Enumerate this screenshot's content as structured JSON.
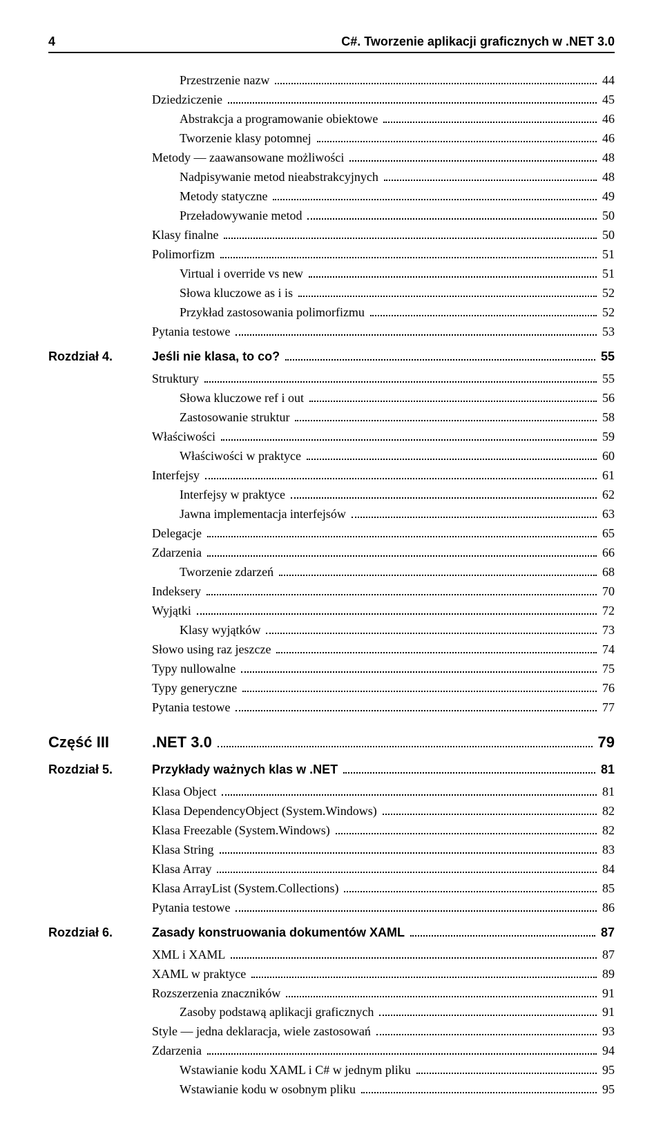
{
  "page_number": "4",
  "running_head": "C#. Tworzenie aplikacji graficznych w .NET 3.0",
  "cont_entries": [
    {
      "label": "Przestrzenie nazw",
      "page": "44",
      "level": 2
    },
    {
      "label": "Dziedziczenie",
      "page": "45",
      "level": 1
    },
    {
      "label": "Abstrakcja a programowanie obiektowe",
      "page": "46",
      "level": 2
    },
    {
      "label": "Tworzenie klasy potomnej",
      "page": "46",
      "level": 2
    },
    {
      "label": "Metody — zaawansowane możliwości",
      "page": "48",
      "level": 1
    },
    {
      "label": "Nadpisywanie metod nieabstrakcyjnych",
      "page": "48",
      "level": 2
    },
    {
      "label": "Metody statyczne",
      "page": "49",
      "level": 2
    },
    {
      "label": "Przeładowywanie metod",
      "page": "50",
      "level": 2
    },
    {
      "label": "Klasy finalne",
      "page": "50",
      "level": 1
    },
    {
      "label": "Polimorfizm",
      "page": "51",
      "level": 1
    },
    {
      "label": "Virtual i override vs new",
      "page": "51",
      "level": 2
    },
    {
      "label": "Słowa kluczowe as i is",
      "page": "52",
      "level": 2
    },
    {
      "label": "Przykład zastosowania polimorfizmu",
      "page": "52",
      "level": 2
    },
    {
      "label": "Pytania testowe",
      "page": "53",
      "level": 1
    }
  ],
  "ch4": {
    "prefix": "Rozdział 4.",
    "title": "Jeśli nie klasa, to co?",
    "page": "55",
    "entries": [
      {
        "label": "Struktury",
        "page": "55",
        "level": 1
      },
      {
        "label": "Słowa kluczowe ref i out",
        "page": "56",
        "level": 2
      },
      {
        "label": "Zastosowanie struktur",
        "page": "58",
        "level": 2
      },
      {
        "label": "Właściwości",
        "page": "59",
        "level": 1
      },
      {
        "label": "Właściwości w praktyce",
        "page": "60",
        "level": 2
      },
      {
        "label": "Interfejsy",
        "page": "61",
        "level": 1
      },
      {
        "label": "Interfejsy w praktyce",
        "page": "62",
        "level": 2
      },
      {
        "label": "Jawna implementacja interfejsów",
        "page": "63",
        "level": 2
      },
      {
        "label": "Delegacje",
        "page": "65",
        "level": 1
      },
      {
        "label": "Zdarzenia",
        "page": "66",
        "level": 1
      },
      {
        "label": "Tworzenie zdarzeń",
        "page": "68",
        "level": 2
      },
      {
        "label": "Indeksery",
        "page": "70",
        "level": 1
      },
      {
        "label": "Wyjątki",
        "page": "72",
        "level": 1
      },
      {
        "label": "Klasy wyjątków",
        "page": "73",
        "level": 2
      },
      {
        "label": "Słowo using raz jeszcze",
        "page": "74",
        "level": 1
      },
      {
        "label": "Typy nullowalne",
        "page": "75",
        "level": 1
      },
      {
        "label": "Typy generyczne",
        "page": "76",
        "level": 1
      },
      {
        "label": "Pytania testowe",
        "page": "77",
        "level": 1
      }
    ]
  },
  "part3": {
    "prefix": "Część III",
    "title": ".NET 3.0",
    "page": "79"
  },
  "ch5": {
    "prefix": "Rozdział 5.",
    "title": "Przykłady ważnych klas w .NET",
    "page": "81",
    "entries": [
      {
        "label": "Klasa Object",
        "page": "81",
        "level": 1
      },
      {
        "label": "Klasa DependencyObject (System.Windows)",
        "page": "82",
        "level": 1
      },
      {
        "label": "Klasa Freezable (System.Windows)",
        "page": "82",
        "level": 1
      },
      {
        "label": "Klasa String",
        "page": "83",
        "level": 1
      },
      {
        "label": "Klasa Array",
        "page": "84",
        "level": 1
      },
      {
        "label": "Klasa ArrayList (System.Collections)",
        "page": "85",
        "level": 1
      },
      {
        "label": "Pytania testowe",
        "page": "86",
        "level": 1
      }
    ]
  },
  "ch6": {
    "prefix": "Rozdział 6.",
    "title": "Zasady konstruowania dokumentów XAML",
    "page": "87",
    "entries": [
      {
        "label": "XML i XAML",
        "page": "87",
        "level": 1
      },
      {
        "label": "XAML w praktyce",
        "page": "89",
        "level": 1
      },
      {
        "label": "Rozszerzenia znaczników",
        "page": "91",
        "level": 1
      },
      {
        "label": "Zasoby podstawą aplikacji graficznych",
        "page": "91",
        "level": 2
      },
      {
        "label": "Style — jedna deklaracja, wiele zastosowań",
        "page": "93",
        "level": 1
      },
      {
        "label": "Zdarzenia",
        "page": "94",
        "level": 1
      },
      {
        "label": "Wstawianie kodu XAML i C# w jednym pliku",
        "page": "95",
        "level": 2
      },
      {
        "label": "Wstawianie kodu w osobnym pliku",
        "page": "95",
        "level": 2
      }
    ]
  }
}
